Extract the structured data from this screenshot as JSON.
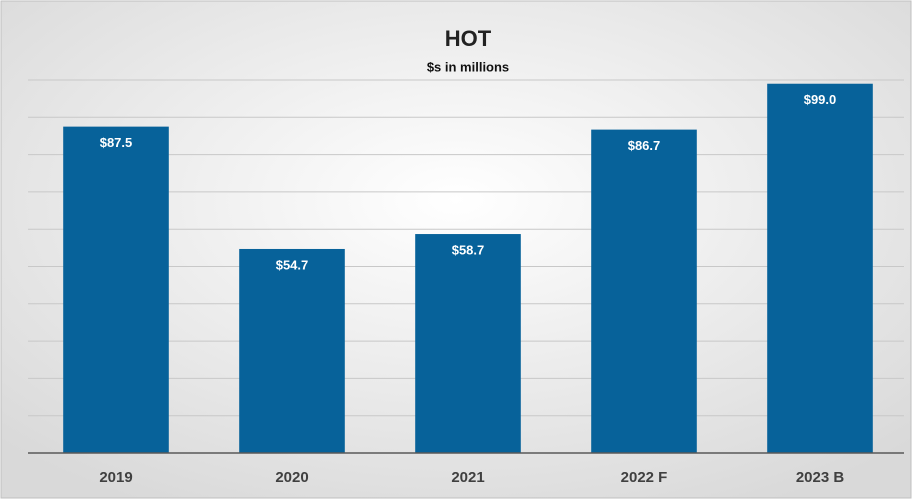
{
  "chart_data": {
    "type": "bar",
    "title": "HOT",
    "subtitle": "$s in millions",
    "categories": [
      "2019",
      "2020",
      "2021",
      "2022 F",
      "2023 B"
    ],
    "values": [
      87.5,
      54.7,
      58.7,
      86.7,
      99.0
    ],
    "value_labels": [
      "$87.5",
      "$54.7",
      "$58.7",
      "$86.7",
      "$99.0"
    ],
    "color": "#07629a",
    "ylim": [
      0,
      100
    ],
    "yticks": [
      0,
      10,
      20,
      30,
      40,
      50,
      60,
      70,
      80,
      90,
      100
    ],
    "grid": true
  }
}
